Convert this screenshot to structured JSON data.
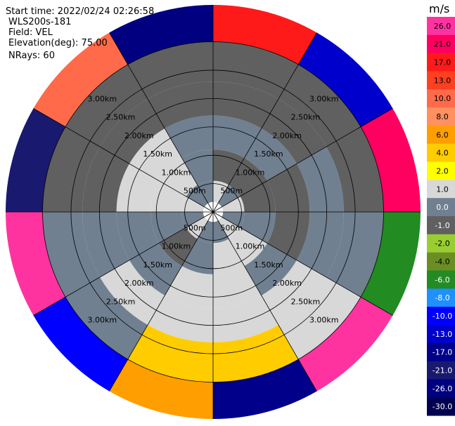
{
  "info": {
    "start_time": "Start time: 2022/02/24 02:26:58",
    "instrument": "WLS200s-181",
    "field": "Field: VEL",
    "elevation": "Elevation(deg): 75.00",
    "nrays": "NRays: 60"
  },
  "chart_data": {
    "type": "heatmap",
    "projection": "polar-ppi",
    "colorbar_unit": "m/s",
    "range_ring_labels": [
      "500m",
      "1.00km",
      "1.50km",
      "2.00km",
      "2.50km",
      "3.00km"
    ],
    "range_rings_km": [
      0.5,
      1.0,
      1.5,
      2.0,
      2.5,
      3.0
    ],
    "max_range_km": 3.65,
    "azimuth_lines_deg": [
      0,
      30,
      60,
      90,
      120,
      150,
      180,
      210,
      240,
      270,
      300,
      330
    ],
    "colorbar_ticks": [
      "26.0",
      "21.0",
      "17.0",
      "13.0",
      "10.0",
      "8.0",
      "6.0",
      "4.0",
      "2.0",
      "1.0",
      "0.0",
      "-1.0",
      "-2.0",
      "-4.0",
      "-6.0",
      "-8.0",
      "-10.0",
      "-13.0",
      "-17.0",
      "-21.0",
      "-26.0",
      "-30.0"
    ],
    "colorbar_colors": [
      "#ff33a0",
      "#ff0060",
      "#ff1a1a",
      "#ff4020",
      "#ff6a4a",
      "#ff9060",
      "#ff9e00",
      "#ffcc00",
      "#ffff00",
      "#d8d8d8",
      "#708090",
      "#606060",
      "#9acd32",
      "#6b8e23",
      "#228b22",
      "#1e90ff",
      "#0000ff",
      "#0000cd",
      "#00008b",
      "#191970",
      "#000080",
      "#000050"
    ],
    "series": [
      {
        "ring": 0,
        "values": [
          0.5,
          -0.5,
          0.5,
          -0.5,
          0.5,
          -0.5,
          -0.5,
          0.5,
          -0.5,
          0.5,
          -0.5,
          -0.5
        ]
      },
      {
        "ring": 1,
        "values": [
          -1.5,
          -1.5,
          -1.5,
          -0.5,
          0.5,
          0.5,
          -0.5,
          -1.5,
          -0.5,
          0.5,
          0.5,
          -0.5
        ]
      },
      {
        "ring": 2,
        "values": [
          -0.5,
          -0.5,
          -1.5,
          -1.5,
          -0.5,
          0.5,
          0.5,
          -0.5,
          -0.5,
          0.5,
          0.5,
          -0.5
        ]
      },
      {
        "ring": 3,
        "values": [
          -1.5,
          -1.5,
          -0.5,
          -0.5,
          0.5,
          0.5,
          0.5,
          0.5,
          -0.5,
          -1.5,
          -1.5,
          -1.5
        ]
      },
      {
        "ring": 4,
        "values": [
          -1.5,
          -1.5,
          -1.5,
          -0.5,
          0.5,
          3.0,
          3.0,
          -0.5,
          -0.5,
          -1.5,
          -1.5,
          -1.5
        ]
      },
      {
        "ring": 5,
        "values": [
          15,
          -15,
          19,
          -7,
          23,
          -19,
          5,
          -11,
          23,
          -25,
          9,
          -28
        ]
      }
    ]
  }
}
